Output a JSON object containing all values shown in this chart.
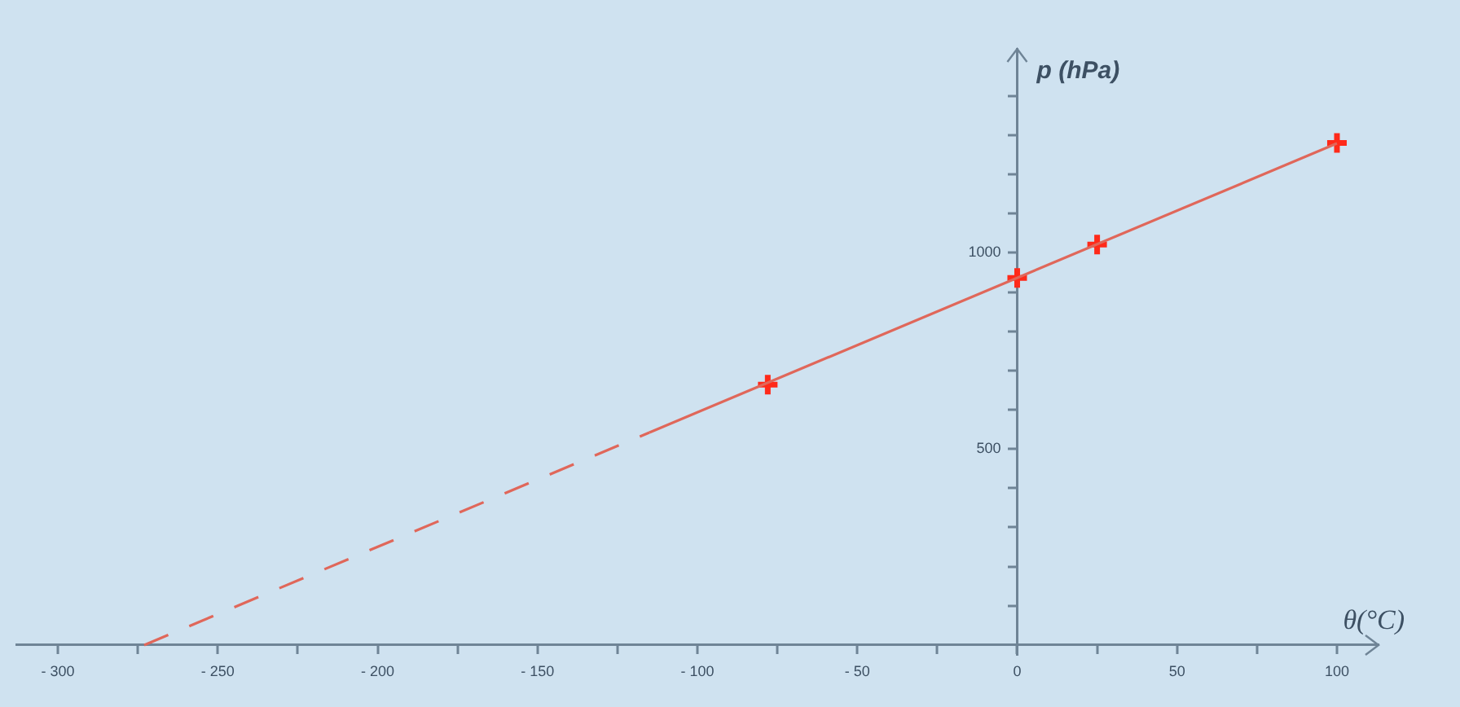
{
  "chart_data": {
    "type": "scatter",
    "xlabel": "θ(°C)",
    "ylabel": "p (hPa)",
    "xlim": [
      -313,
      113
    ],
    "ylim": [
      -25,
      1520
    ],
    "xticks": [
      {
        "value": -300,
        "label": "- 300"
      },
      {
        "value": -275,
        "label": null
      },
      {
        "value": -250,
        "label": "- 250"
      },
      {
        "value": -225,
        "label": null
      },
      {
        "value": -200,
        "label": "- 200"
      },
      {
        "value": -175,
        "label": null
      },
      {
        "value": -150,
        "label": "- 150"
      },
      {
        "value": -125,
        "label": null
      },
      {
        "value": -100,
        "label": "- 100"
      },
      {
        "value": -75,
        "label": null
      },
      {
        "value": -50,
        "label": "- 50"
      },
      {
        "value": -25,
        "label": null
      },
      0,
      {
        "value": 25,
        "label": null
      },
      50,
      {
        "value": 75,
        "label": null
      },
      100
    ],
    "yticks": [
      {
        "value": 100,
        "label": null
      },
      {
        "value": 200,
        "label": null
      },
      {
        "value": 300,
        "label": null
      },
      {
        "value": 400,
        "label": null
      },
      500,
      {
        "value": 600,
        "label": null
      },
      {
        "value": 700,
        "label": null
      },
      {
        "value": 800,
        "label": null
      },
      {
        "value": 900,
        "label": null
      },
      1000,
      {
        "value": 1100,
        "label": null
      },
      {
        "value": 1200,
        "label": null
      },
      {
        "value": 1300,
        "label": null
      },
      {
        "value": 1400,
        "label": null
      }
    ],
    "grid": false,
    "legend": false,
    "series": [
      {
        "type": "line",
        "line_style": "dashed",
        "color": "#e0675a",
        "x": [
          -273,
          -115
        ],
        "values": [
          0,
          542
        ]
      },
      {
        "type": "line",
        "line_style": "solid",
        "color": "#e0675a",
        "x": [
          -115,
          100
        ],
        "values": [
          542,
          1279
        ]
      },
      {
        "marker": "cross",
        "color": "#ff2a1a",
        "x": [
          -78,
          0,
          25,
          100
        ],
        "values": [
          664,
          936,
          1021,
          1280
        ]
      }
    ]
  }
}
